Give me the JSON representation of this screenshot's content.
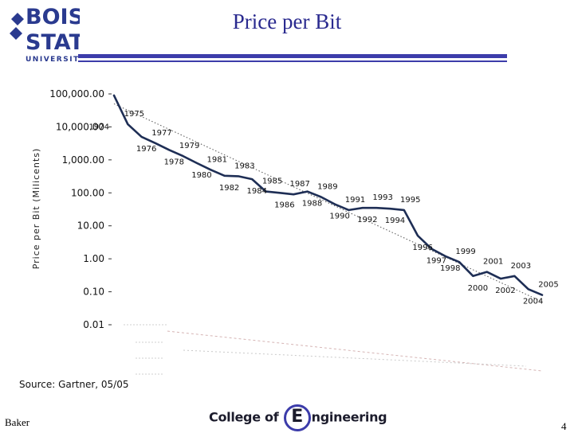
{
  "header": {
    "logo_top": "BOISE",
    "logo_middle": "STATE",
    "logo_bottom": "UNIVERSITY",
    "title": "Price per Bit"
  },
  "footer": {
    "left": "Baker",
    "college_prefix": "College of",
    "college_e": "E",
    "college_suffix": "ngineering",
    "page": "4"
  },
  "source": "Source:  Gartner, 05/05",
  "colors": {
    "curve": "#1e2e55",
    "rule": "#3c3caa",
    "title": "#2a2a8f"
  },
  "chart_data": {
    "type": "line",
    "title": "",
    "xlabel": "",
    "ylabel": "Price per Bit (Milicents)",
    "yscale": "log",
    "ylim": [
      0.01,
      100000
    ],
    "y_tick_labels": [
      "100,000.00",
      "10,000.00",
      "1,000.00",
      "100.00",
      "10.00",
      "1.00",
      "0.10",
      "0.01"
    ],
    "xlim": [
      1974,
      2005
    ],
    "trendline": {
      "x": [
        1974,
        2005
      ],
      "y": [
        50000,
        0.05
      ],
      "style": "dotted"
    },
    "series": [
      {
        "x": [
          1974,
          1975,
          1976,
          1977,
          1978,
          1979,
          1980,
          1981,
          1982,
          1983,
          1984,
          1985,
          1986,
          1987,
          1988,
          1989,
          1990,
          1991,
          1992,
          1993,
          1994,
          1995,
          1996,
          1997,
          1998,
          1999,
          2000,
          2001,
          2002,
          2003,
          2004,
          2005
        ],
        "y": [
          90000,
          12000,
          5000,
          3200,
          2000,
          1300,
          800,
          500,
          330,
          320,
          260,
          110,
          100,
          90,
          110,
          75,
          45,
          30,
          35,
          35,
          33,
          30,
          5,
          2,
          1.2,
          0.8,
          0.3,
          0.4,
          0.25,
          0.3,
          0.12,
          0.08
        ]
      }
    ],
    "point_labels": [
      {
        "year": "1974",
        "pos": "left"
      },
      {
        "year": "1975",
        "pos": "above"
      },
      {
        "year": "1976",
        "pos": "below"
      },
      {
        "year": "1977",
        "pos": "above"
      },
      {
        "year": "1978",
        "pos": "below"
      },
      {
        "year": "1979",
        "pos": "above"
      },
      {
        "year": "1980",
        "pos": "below"
      },
      {
        "year": "1981",
        "pos": "above"
      },
      {
        "year": "1982",
        "pos": "below"
      },
      {
        "year": "1983",
        "pos": "above"
      },
      {
        "year": "1984",
        "pos": "below"
      },
      {
        "year": "1985",
        "pos": "above"
      },
      {
        "year": "1986",
        "pos": "below"
      },
      {
        "year": "1987",
        "pos": "above"
      },
      {
        "year": "1988",
        "pos": "below"
      },
      {
        "year": "1989",
        "pos": "above"
      },
      {
        "year": "1990",
        "pos": "below"
      },
      {
        "year": "1991",
        "pos": "above"
      },
      {
        "year": "1992",
        "pos": "below"
      },
      {
        "year": "1993",
        "pos": "above"
      },
      {
        "year": "1994",
        "pos": "below"
      },
      {
        "year": "1995",
        "pos": "above"
      },
      {
        "year": "1996",
        "pos": "below"
      },
      {
        "year": "1997",
        "pos": "below"
      },
      {
        "year": "1998",
        "pos": "below"
      },
      {
        "year": "1999",
        "pos": "above"
      },
      {
        "year": "2000",
        "pos": "below"
      },
      {
        "year": "2001",
        "pos": "above"
      },
      {
        "year": "2002",
        "pos": "below"
      },
      {
        "year": "2003",
        "pos": "above"
      },
      {
        "year": "2004",
        "pos": "below"
      },
      {
        "year": "2005",
        "pos": "above"
      }
    ]
  }
}
